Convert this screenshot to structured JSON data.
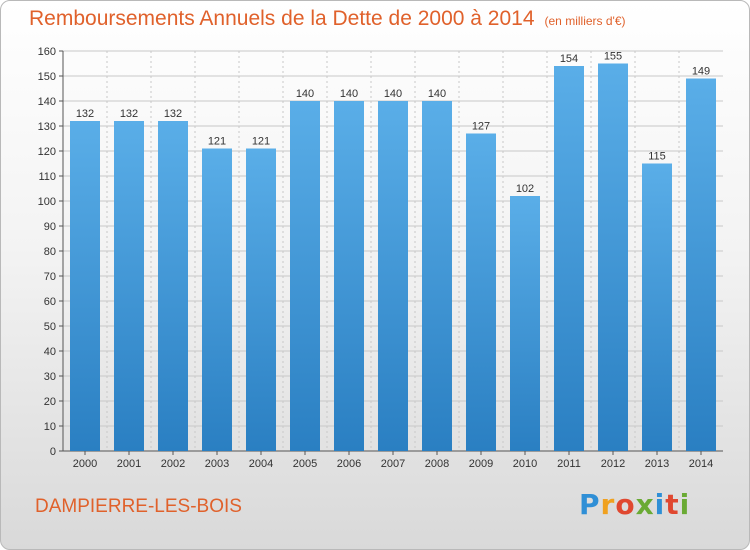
{
  "header": {
    "title": "Remboursements Annuels de la Dette de 2000 à 2014",
    "unit": "(en milliers d'€)"
  },
  "footer": {
    "location": "DAMPIERRE-LES-BOIS",
    "logo": {
      "letters": [
        "P",
        "r",
        "o",
        "x",
        "i",
        "t",
        "i"
      ],
      "colors": [
        "#2f8fd6",
        "#f0a11f",
        "#e04830",
        "#6aaa34",
        "#2f8fd6",
        "#e04830",
        "#6aaa34"
      ]
    }
  },
  "colors": {
    "bar_light": "#5aaee8",
    "bar_dark": "#2a7fc2",
    "title": "#e0612b",
    "grid": "#c8c8c8"
  },
  "chart_data": {
    "type": "bar",
    "categories": [
      "2000",
      "2001",
      "2002",
      "2003",
      "2004",
      "2005",
      "2006",
      "2007",
      "2008",
      "2009",
      "2010",
      "2011",
      "2012",
      "2013",
      "2014"
    ],
    "values": [
      132,
      132,
      132,
      121,
      121,
      140,
      140,
      140,
      140,
      127,
      102,
      154,
      155,
      115,
      149
    ],
    "yticks": [
      0,
      10,
      20,
      30,
      40,
      50,
      60,
      70,
      80,
      90,
      100,
      110,
      120,
      130,
      140,
      150,
      160
    ],
    "ylim": [
      0,
      160
    ],
    "grid": true,
    "legend": "none"
  }
}
